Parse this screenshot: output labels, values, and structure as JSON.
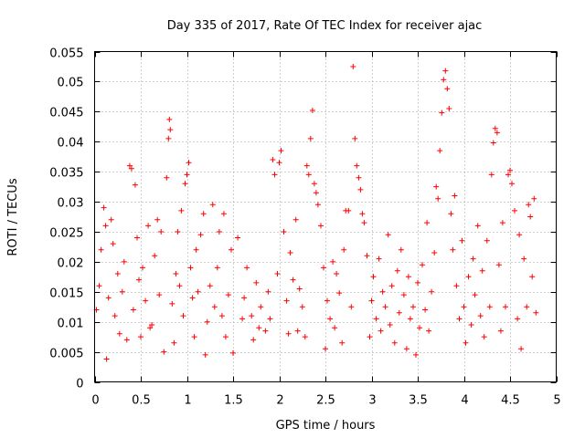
{
  "chart_data": {
    "type": "scatter",
    "title": "Day 335 of 2017, Rate Of TEC Index for receiver ajac",
    "xlabel": "GPS time / hours",
    "ylabel": "ROTI / TECUs",
    "xlim": [
      0,
      5
    ],
    "ylim": [
      0,
      0.055
    ],
    "xticks": [
      "0",
      "0.5",
      "1",
      "1.5",
      "2",
      "2.5",
      "3",
      "3.5",
      "4",
      "4.5",
      "5"
    ],
    "yticks": [
      "0",
      "0.005",
      "0.01",
      "0.015",
      "0.02",
      "0.025",
      "0.03",
      "0.035",
      "0.04",
      "0.045",
      "0.05",
      "0.055"
    ],
    "grid": true,
    "marker": "+",
    "color": "#ff0000",
    "series": [
      {
        "values": [
          [
            0.02,
            0.012
          ],
          [
            0.05,
            0.016
          ],
          [
            0.07,
            0.022
          ],
          [
            0.1,
            0.029
          ],
          [
            0.12,
            0.026
          ],
          [
            0.13,
            0.0038
          ],
          [
            0.15,
            0.014
          ],
          [
            0.18,
            0.027
          ],
          [
            0.2,
            0.023
          ],
          [
            0.22,
            0.011
          ],
          [
            0.25,
            0.018
          ],
          [
            0.27,
            0.008
          ],
          [
            0.3,
            0.015
          ],
          [
            0.32,
            0.02
          ],
          [
            0.35,
            0.007
          ],
          [
            0.38,
            0.036
          ],
          [
            0.4,
            0.0355
          ],
          [
            0.42,
            0.012
          ],
          [
            0.44,
            0.0328
          ],
          [
            0.46,
            0.024
          ],
          [
            0.48,
            0.017
          ],
          [
            0.5,
            0.0075
          ],
          [
            0.52,
            0.019
          ],
          [
            0.55,
            0.0135
          ],
          [
            0.58,
            0.026
          ],
          [
            0.6,
            0.009
          ],
          [
            0.62,
            0.0095
          ],
          [
            0.65,
            0.021
          ],
          [
            0.68,
            0.027
          ],
          [
            0.7,
            0.0145
          ],
          [
            0.72,
            0.025
          ],
          [
            0.75,
            0.005
          ],
          [
            0.78,
            0.034
          ],
          [
            0.8,
            0.0405
          ],
          [
            0.81,
            0.0437
          ],
          [
            0.82,
            0.042
          ],
          [
            0.84,
            0.013
          ],
          [
            0.86,
            0.0065
          ],
          [
            0.88,
            0.018
          ],
          [
            0.9,
            0.025
          ],
          [
            0.92,
            0.016
          ],
          [
            0.94,
            0.0285
          ],
          [
            0.96,
            0.011
          ],
          [
            0.98,
            0.033
          ],
          [
            1.0,
            0.0345
          ],
          [
            1.02,
            0.0365
          ],
          [
            1.04,
            0.019
          ],
          [
            1.06,
            0.014
          ],
          [
            1.08,
            0.0075
          ],
          [
            1.1,
            0.022
          ],
          [
            1.12,
            0.015
          ],
          [
            1.15,
            0.0245
          ],
          [
            1.18,
            0.028
          ],
          [
            1.2,
            0.0045
          ],
          [
            1.22,
            0.01
          ],
          [
            1.25,
            0.016
          ],
          [
            1.28,
            0.0295
          ],
          [
            1.3,
            0.0125
          ],
          [
            1.33,
            0.019
          ],
          [
            1.35,
            0.025
          ],
          [
            1.38,
            0.011
          ],
          [
            1.4,
            0.028
          ],
          [
            1.42,
            0.0075
          ],
          [
            1.45,
            0.0145
          ],
          [
            1.48,
            0.022
          ],
          [
            1.5,
            0.0048
          ],
          [
            1.55,
            0.024
          ],
          [
            1.6,
            0.0105
          ],
          [
            1.62,
            0.014
          ],
          [
            1.65,
            0.019
          ],
          [
            1.7,
            0.011
          ],
          [
            1.72,
            0.007
          ],
          [
            1.75,
            0.0165
          ],
          [
            1.78,
            0.009
          ],
          [
            1.8,
            0.0125
          ],
          [
            1.85,
            0.0085
          ],
          [
            1.88,
            0.015
          ],
          [
            1.9,
            0.0105
          ],
          [
            1.93,
            0.037
          ],
          [
            1.95,
            0.0345
          ],
          [
            1.98,
            0.018
          ],
          [
            2.0,
            0.0365
          ],
          [
            2.02,
            0.0385
          ],
          [
            2.05,
            0.025
          ],
          [
            2.08,
            0.0135
          ],
          [
            2.1,
            0.008
          ],
          [
            2.12,
            0.0215
          ],
          [
            2.15,
            0.017
          ],
          [
            2.18,
            0.027
          ],
          [
            2.2,
            0.0085
          ],
          [
            2.22,
            0.0155
          ],
          [
            2.25,
            0.0125
          ],
          [
            2.28,
            0.0075
          ],
          [
            2.3,
            0.036
          ],
          [
            2.32,
            0.0345
          ],
          [
            2.34,
            0.0405
          ],
          [
            2.36,
            0.0452
          ],
          [
            2.38,
            0.033
          ],
          [
            2.4,
            0.0315
          ],
          [
            2.42,
            0.0295
          ],
          [
            2.45,
            0.026
          ],
          [
            2.48,
            0.019
          ],
          [
            2.5,
            0.0055
          ],
          [
            2.52,
            0.0135
          ],
          [
            2.55,
            0.0105
          ],
          [
            2.58,
            0.02
          ],
          [
            2.6,
            0.009
          ],
          [
            2.62,
            0.018
          ],
          [
            2.65,
            0.0148
          ],
          [
            2.68,
            0.0065
          ],
          [
            2.7,
            0.022
          ],
          [
            2.72,
            0.0285
          ],
          [
            2.75,
            0.0285
          ],
          [
            2.78,
            0.0125
          ],
          [
            2.8,
            0.0525
          ],
          [
            2.82,
            0.0405
          ],
          [
            2.84,
            0.036
          ],
          [
            2.86,
            0.034
          ],
          [
            2.88,
            0.032
          ],
          [
            2.9,
            0.028
          ],
          [
            2.92,
            0.0265
          ],
          [
            2.95,
            0.021
          ],
          [
            2.98,
            0.0075
          ],
          [
            3.0,
            0.0135
          ],
          [
            3.02,
            0.0175
          ],
          [
            3.05,
            0.0105
          ],
          [
            3.08,
            0.0205
          ],
          [
            3.1,
            0.0085
          ],
          [
            3.12,
            0.015
          ],
          [
            3.15,
            0.0125
          ],
          [
            3.18,
            0.0245
          ],
          [
            3.2,
            0.0095
          ],
          [
            3.22,
            0.016
          ],
          [
            3.25,
            0.0065
          ],
          [
            3.28,
            0.0185
          ],
          [
            3.3,
            0.0115
          ],
          [
            3.32,
            0.022
          ],
          [
            3.35,
            0.0145
          ],
          [
            3.38,
            0.0055
          ],
          [
            3.4,
            0.0175
          ],
          [
            3.42,
            0.0105
          ],
          [
            3.45,
            0.0125
          ],
          [
            3.48,
            0.0045
          ],
          [
            3.5,
            0.0165
          ],
          [
            3.52,
            0.009
          ],
          [
            3.55,
            0.0195
          ],
          [
            3.58,
            0.012
          ],
          [
            3.6,
            0.0265
          ],
          [
            3.62,
            0.0085
          ],
          [
            3.65,
            0.015
          ],
          [
            3.68,
            0.0215
          ],
          [
            3.7,
            0.0325
          ],
          [
            3.72,
            0.0305
          ],
          [
            3.74,
            0.0385
          ],
          [
            3.76,
            0.0448
          ],
          [
            3.78,
            0.0503
          ],
          [
            3.8,
            0.0518
          ],
          [
            3.82,
            0.0488
          ],
          [
            3.84,
            0.0455
          ],
          [
            3.86,
            0.028
          ],
          [
            3.88,
            0.022
          ],
          [
            3.9,
            0.031
          ],
          [
            3.92,
            0.016
          ],
          [
            3.95,
            0.0105
          ],
          [
            3.98,
            0.0235
          ],
          [
            4.0,
            0.0125
          ],
          [
            4.02,
            0.0065
          ],
          [
            4.05,
            0.0175
          ],
          [
            4.08,
            0.0095
          ],
          [
            4.1,
            0.0205
          ],
          [
            4.12,
            0.0145
          ],
          [
            4.15,
            0.026
          ],
          [
            4.18,
            0.011
          ],
          [
            4.2,
            0.0185
          ],
          [
            4.22,
            0.0075
          ],
          [
            4.25,
            0.0235
          ],
          [
            4.28,
            0.0125
          ],
          [
            4.3,
            0.0345
          ],
          [
            4.32,
            0.0398
          ],
          [
            4.34,
            0.0422
          ],
          [
            4.36,
            0.0415
          ],
          [
            4.38,
            0.0195
          ],
          [
            4.4,
            0.0085
          ],
          [
            4.42,
            0.0265
          ],
          [
            4.45,
            0.0125
          ],
          [
            4.48,
            0.0345
          ],
          [
            4.5,
            0.0352
          ],
          [
            4.52,
            0.033
          ],
          [
            4.55,
            0.0285
          ],
          [
            4.58,
            0.0105
          ],
          [
            4.6,
            0.0245
          ],
          [
            4.62,
            0.0055
          ],
          [
            4.65,
            0.0205
          ],
          [
            4.68,
            0.0125
          ],
          [
            4.7,
            0.0295
          ],
          [
            4.72,
            0.0275
          ],
          [
            4.74,
            0.0175
          ],
          [
            4.76,
            0.0305
          ],
          [
            4.78,
            0.0115
          ]
        ]
      }
    ]
  }
}
